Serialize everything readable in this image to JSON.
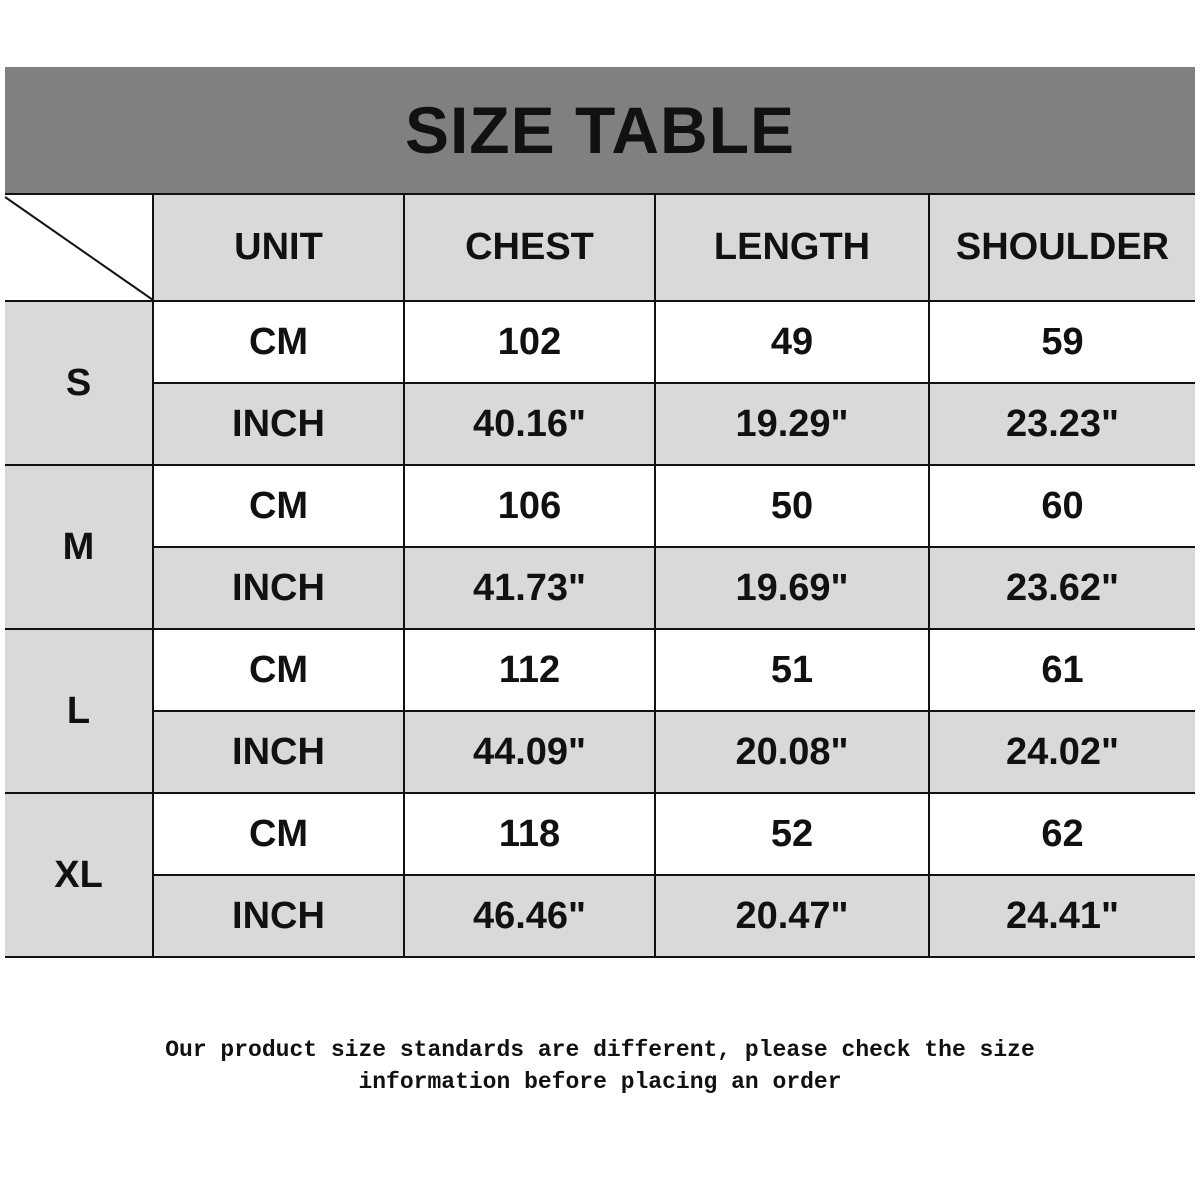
{
  "title": "SIZE TABLE",
  "headers": [
    "UNIT",
    "CHEST",
    "LENGTH",
    "SHOULDER"
  ],
  "sizes": [
    {
      "size": "S",
      "rows": [
        [
          "CM",
          "102",
          "49",
          "59"
        ],
        [
          "INCH",
          "40.16\"",
          "19.29\"",
          "23.23\""
        ]
      ]
    },
    {
      "size": "M",
      "rows": [
        [
          "CM",
          "106",
          "50",
          "60"
        ],
        [
          "INCH",
          "41.73\"",
          "19.69\"",
          "23.62\""
        ]
      ]
    },
    {
      "size": "L",
      "rows": [
        [
          "CM",
          "112",
          "51",
          "61"
        ],
        [
          "INCH",
          "44.09\"",
          "20.08\"",
          "24.02\""
        ]
      ]
    },
    {
      "size": "XL",
      "rows": [
        [
          "CM",
          "118",
          "52",
          "62"
        ],
        [
          "INCH",
          "46.46\"",
          "20.47\"",
          "24.41\""
        ]
      ]
    }
  ],
  "note_line1": "Our product size standards are different, please check the size",
  "note_line2": "information before placing an order",
  "colors": {
    "title_bg": "#808080",
    "cell_gray": "#d9d9d9",
    "cell_white": "#ffffff"
  }
}
